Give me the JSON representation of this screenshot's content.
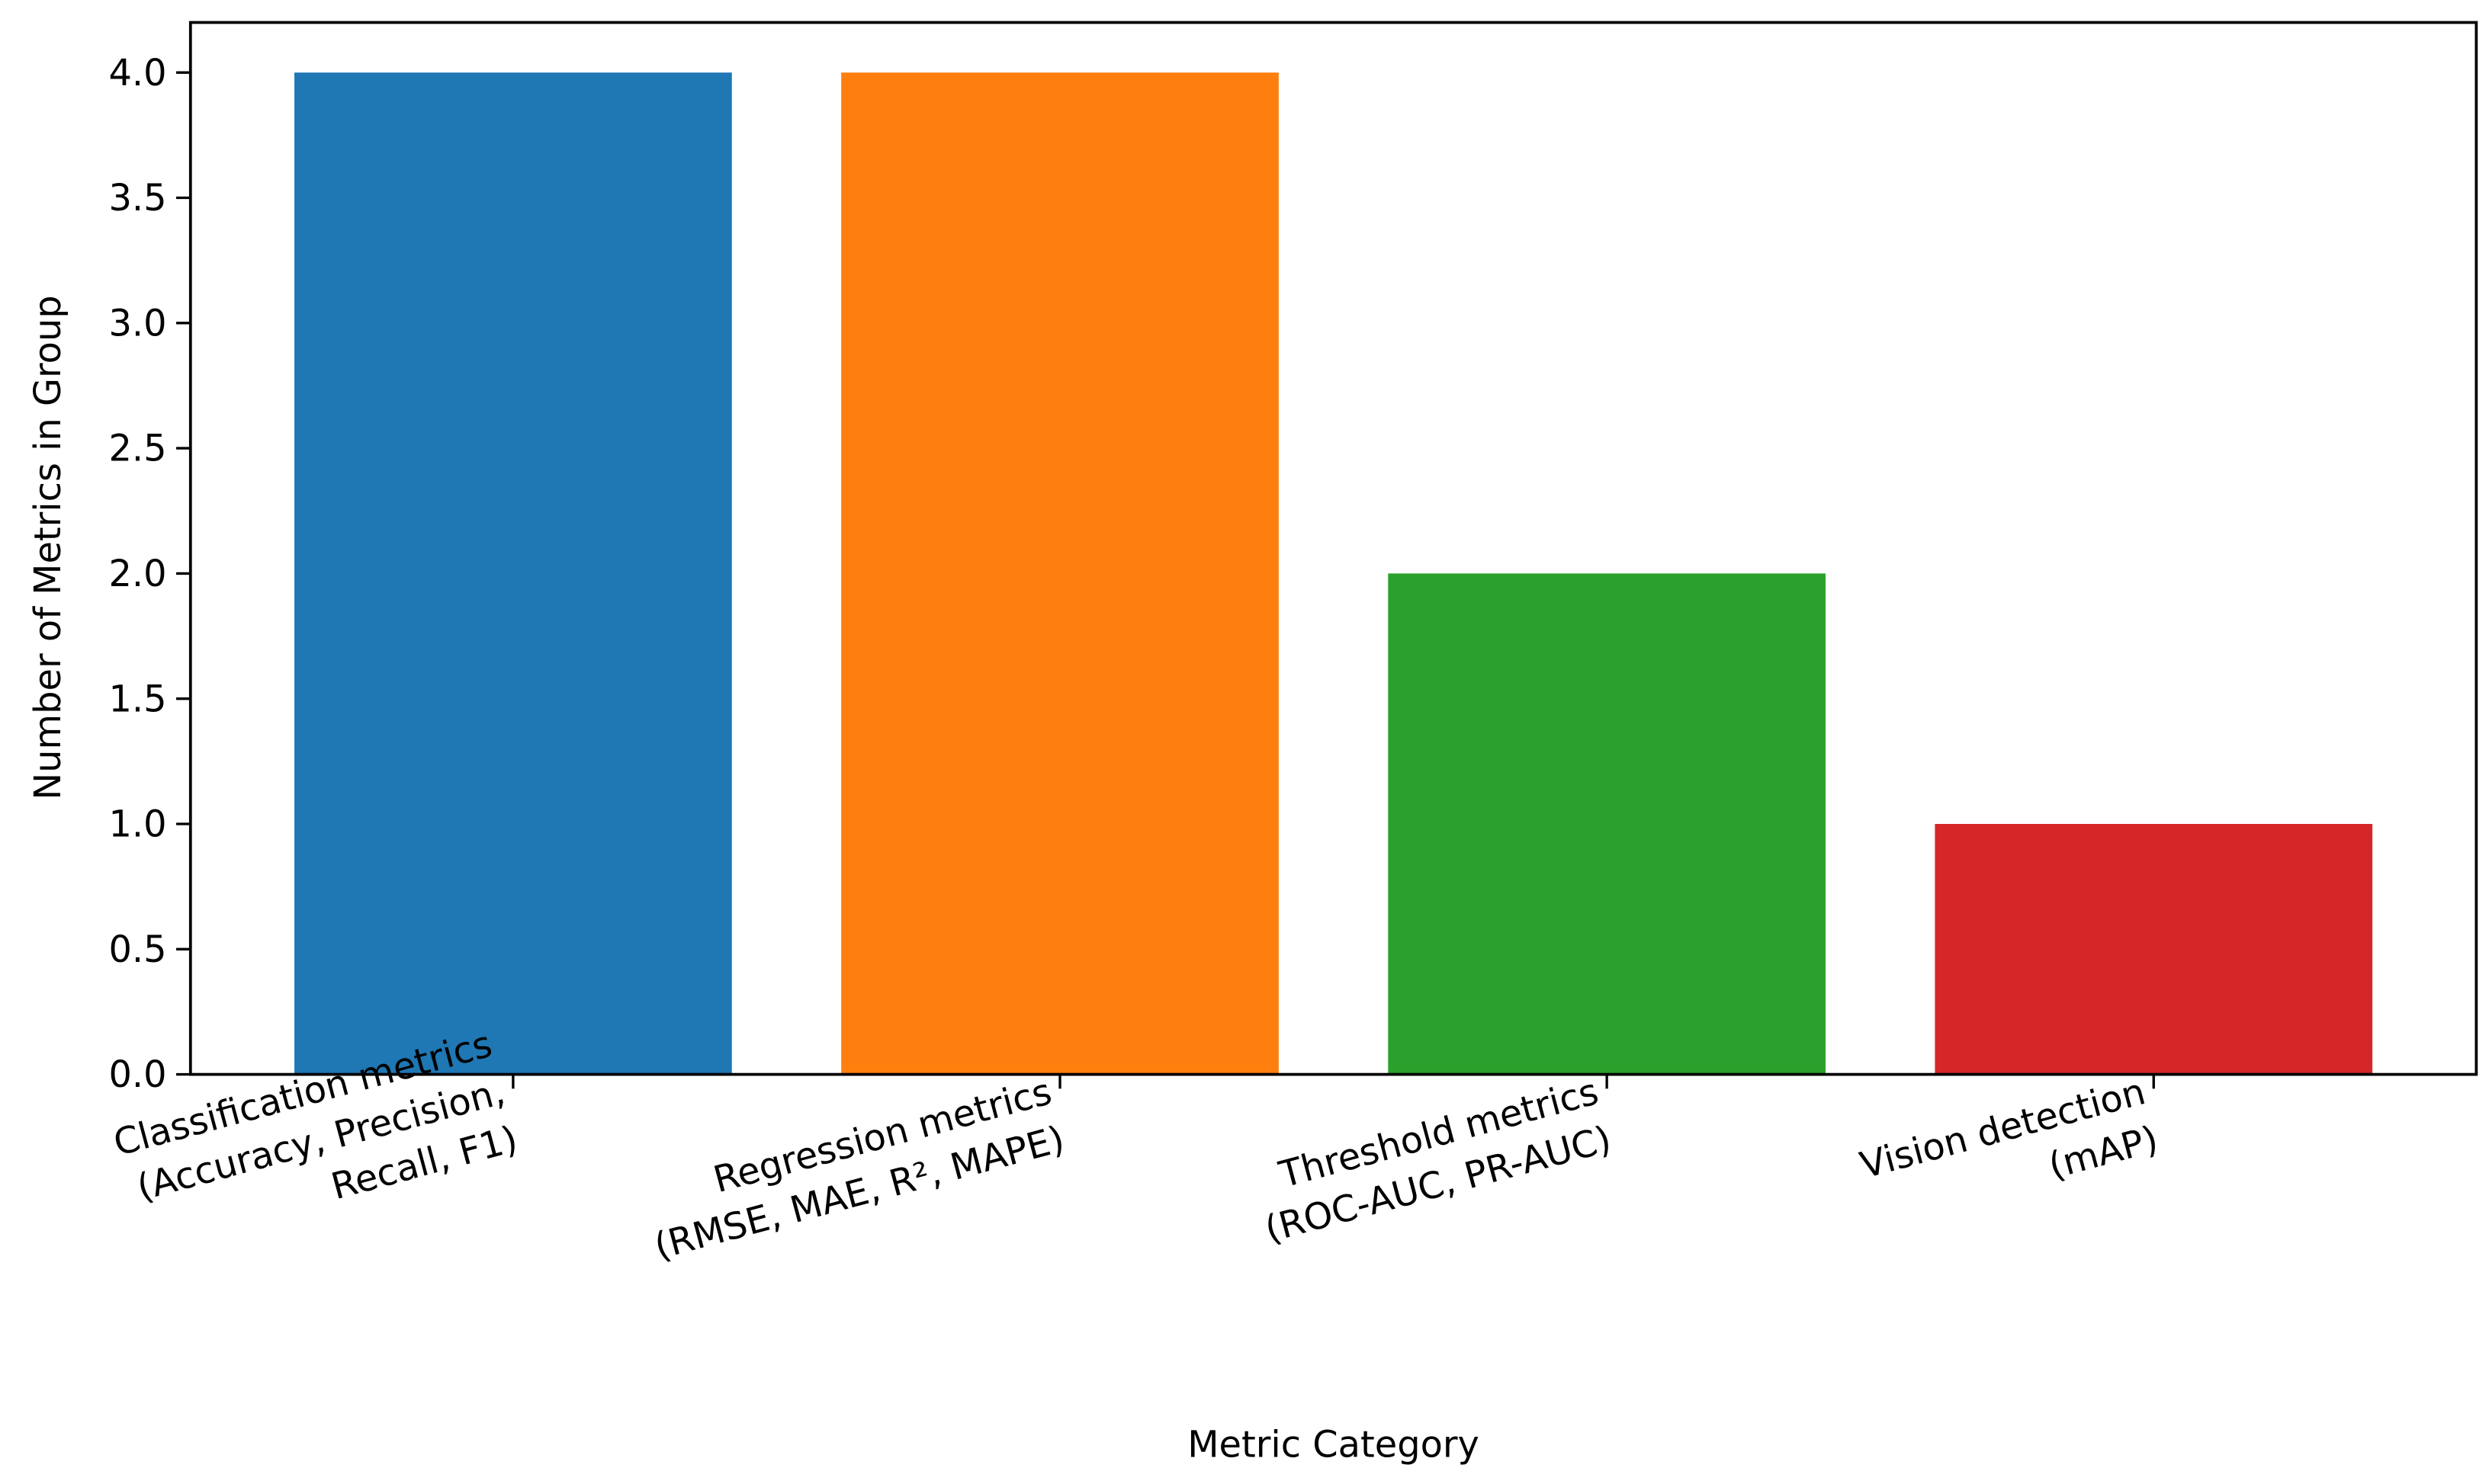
{
  "chart_data": {
    "type": "bar",
    "categories": [
      "Classification metrics\n(Accuracy, Precision,\nRecall, F1)",
      "Regression metrics\n(RMSE, MAE, R², MAPE)",
      "Threshold metrics\n(ROC-AUC, PR-AUC)",
      "Vision detection\n(mAP)"
    ],
    "values": [
      4,
      4,
      2,
      1
    ],
    "colors": [
      "#1f77b4",
      "#ff7f0e",
      "#2ca02c",
      "#d62728"
    ],
    "x_label": "Metric Category",
    "y_label": "Number of Metrics in Group",
    "ylim": [
      0,
      4.2
    ],
    "yticks": [
      {
        "value": 0,
        "label": "0.0"
      },
      0.5,
      {
        "value": 1,
        "label": "1.0"
      },
      1.5,
      {
        "value": 2,
        "label": "2.0"
      },
      2.5,
      {
        "value": 3,
        "label": "3.0"
      },
      3.5,
      {
        "value": 4,
        "label": "4.0"
      }
    ],
    "grid": false
  }
}
